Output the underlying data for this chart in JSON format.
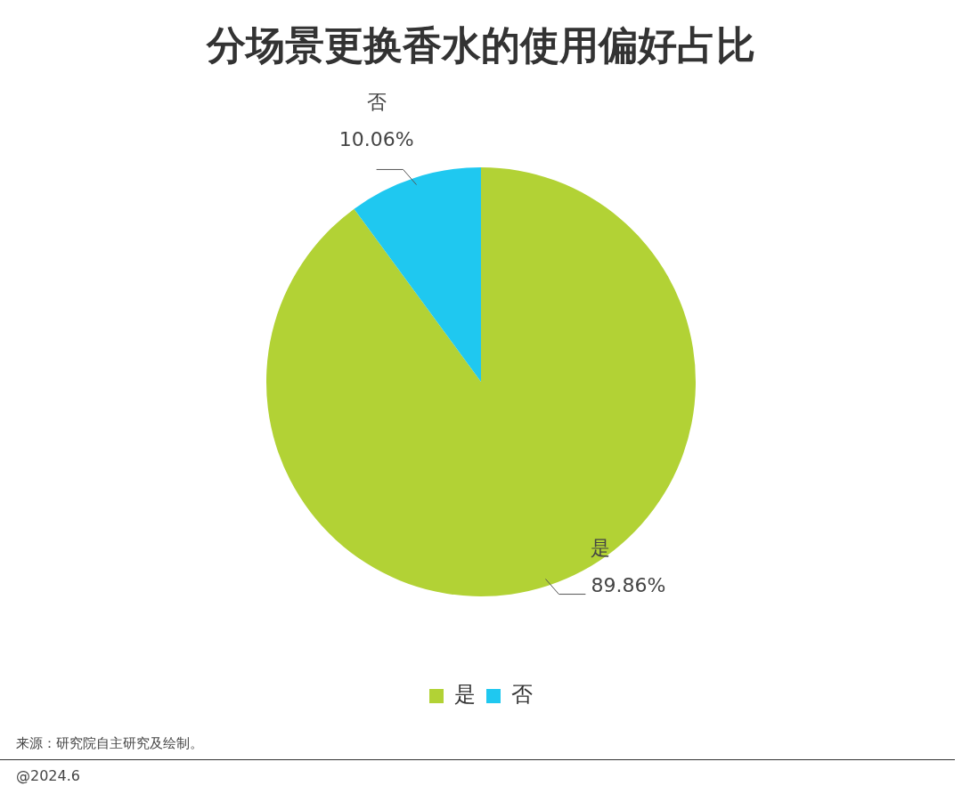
{
  "chart_data": {
    "type": "pie",
    "title": "分场景更换香水的使用偏好占比",
    "categories": [
      "是",
      "否"
    ],
    "values": [
      89.86,
      10.06
    ],
    "value_labels": [
      "89.86%",
      "10.06%"
    ],
    "colors": [
      "#b2d235",
      "#1fc8f0"
    ],
    "legend": "bottom",
    "annotations": [
      "来源：研究院自主研究及绘制。",
      "@2024.6"
    ]
  }
}
